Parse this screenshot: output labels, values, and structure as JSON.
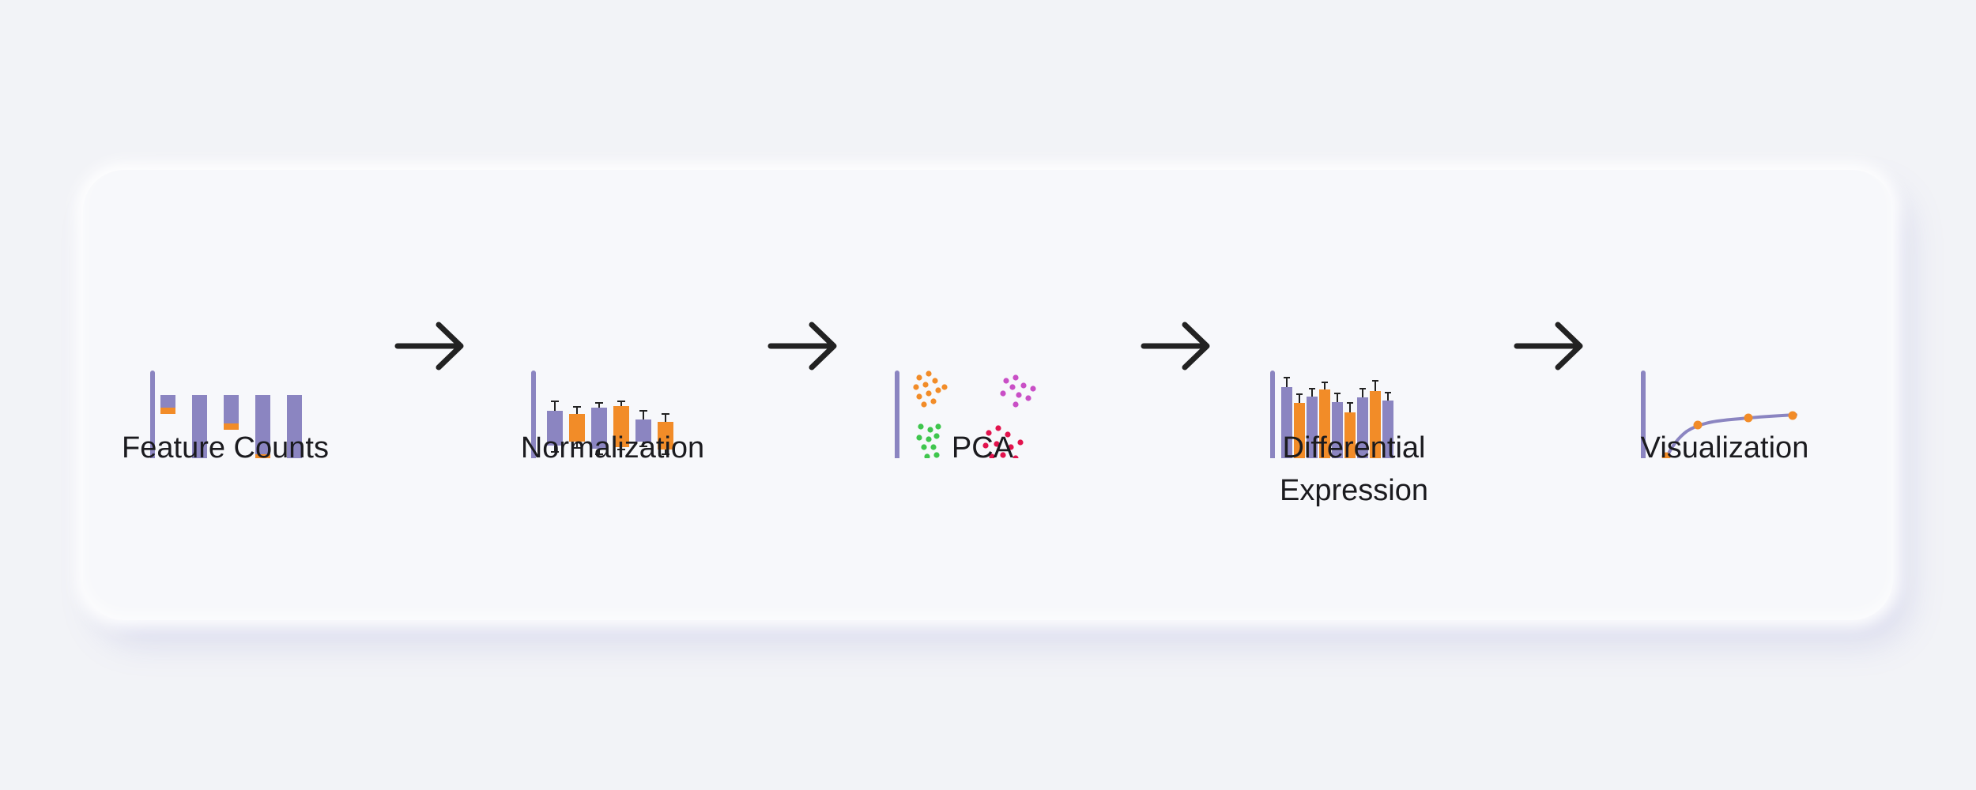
{
  "colors": {
    "purple": "#8b85c1",
    "orange": "#f28c28",
    "green": "#3fc64d",
    "magenta": "#c94fc6",
    "crimson": "#e2134d",
    "arrow": "#222222"
  },
  "steps": [
    {
      "label": "Feature Counts",
      "icon": "stacked-bar-chart-icon"
    },
    {
      "label": "Normalization",
      "icon": "box-plot-icon"
    },
    {
      "label": "PCA",
      "icon": "cluster-scatter-icon"
    },
    {
      "label": "Differential\nExpression",
      "icon": "grouped-bar-chart-icon"
    },
    {
      "label": "Visualization",
      "icon": "curve-plot-icon"
    }
  ],
  "arrows": [
    "right-arrow-icon",
    "right-arrow-icon",
    "right-arrow-icon",
    "right-arrow-icon"
  ]
}
